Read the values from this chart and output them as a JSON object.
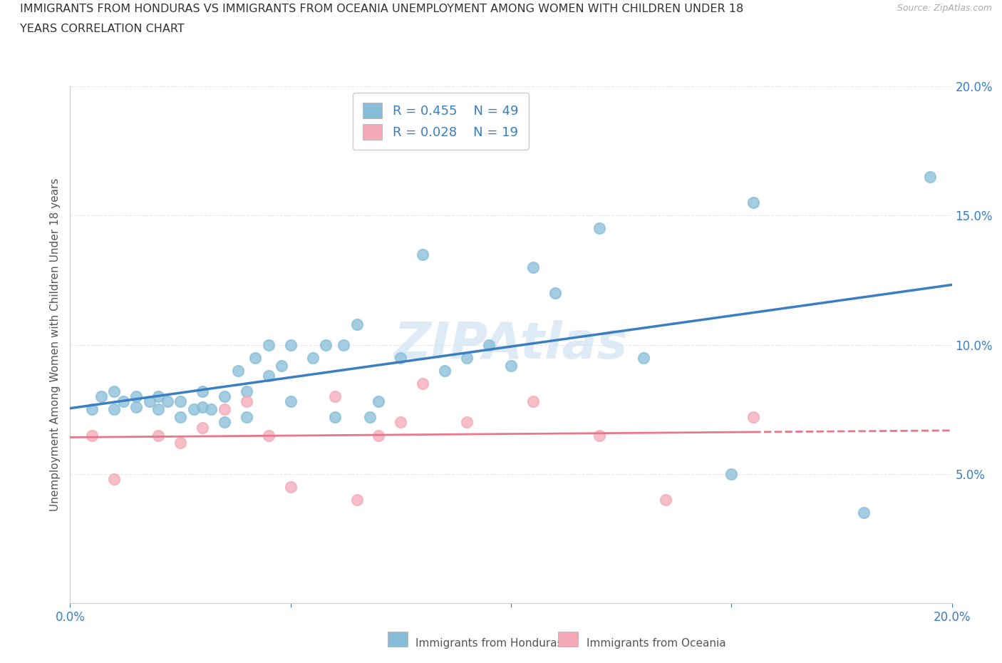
{
  "title_line1": "IMMIGRANTS FROM HONDURAS VS IMMIGRANTS FROM OCEANIA UNEMPLOYMENT AMONG WOMEN WITH CHILDREN UNDER 18",
  "title_line2": "YEARS CORRELATION CHART",
  "source": "Source: ZipAtlas.com",
  "ylabel": "Unemployment Among Women with Children Under 18 years",
  "xlim": [
    0.0,
    0.2
  ],
  "ylim": [
    0.0,
    0.2
  ],
  "legend_r_honduras": "R = 0.455",
  "legend_n_honduras": "N = 49",
  "legend_r_oceania": "R = 0.028",
  "legend_n_oceania": "N = 19",
  "color_honduras": "#87bdd8",
  "color_oceania": "#f4a9b8",
  "color_line_honduras": "#3a7fc1",
  "color_line_oceania": "#e8778a",
  "watermark": "ZIPAtlas",
  "honduras_x": [
    0.005,
    0.007,
    0.01,
    0.01,
    0.012,
    0.015,
    0.015,
    0.018,
    0.02,
    0.02,
    0.022,
    0.025,
    0.025,
    0.028,
    0.03,
    0.03,
    0.032,
    0.035,
    0.035,
    0.038,
    0.04,
    0.04,
    0.042,
    0.045,
    0.045,
    0.048,
    0.05,
    0.05,
    0.055,
    0.058,
    0.06,
    0.062,
    0.065,
    0.068,
    0.07,
    0.075,
    0.08,
    0.085,
    0.09,
    0.095,
    0.1,
    0.105,
    0.11,
    0.12,
    0.13,
    0.15,
    0.155,
    0.18,
    0.195
  ],
  "honduras_y": [
    0.075,
    0.08,
    0.075,
    0.082,
    0.078,
    0.08,
    0.076,
    0.078,
    0.075,
    0.08,
    0.078,
    0.072,
    0.078,
    0.075,
    0.076,
    0.082,
    0.075,
    0.07,
    0.08,
    0.09,
    0.072,
    0.082,
    0.095,
    0.088,
    0.1,
    0.092,
    0.078,
    0.1,
    0.095,
    0.1,
    0.072,
    0.1,
    0.108,
    0.072,
    0.078,
    0.095,
    0.135,
    0.09,
    0.095,
    0.1,
    0.092,
    0.13,
    0.12,
    0.145,
    0.095,
    0.05,
    0.155,
    0.035,
    0.165
  ],
  "oceania_x": [
    0.005,
    0.01,
    0.02,
    0.025,
    0.03,
    0.035,
    0.04,
    0.045,
    0.05,
    0.06,
    0.065,
    0.07,
    0.075,
    0.08,
    0.09,
    0.105,
    0.12,
    0.135,
    0.155
  ],
  "oceania_y": [
    0.065,
    0.048,
    0.065,
    0.062,
    0.068,
    0.075,
    0.078,
    0.065,
    0.045,
    0.08,
    0.04,
    0.065,
    0.07,
    0.085,
    0.07,
    0.078,
    0.065,
    0.04,
    0.072
  ],
  "background_color": "#ffffff",
  "grid_color": "#e8e8e8"
}
